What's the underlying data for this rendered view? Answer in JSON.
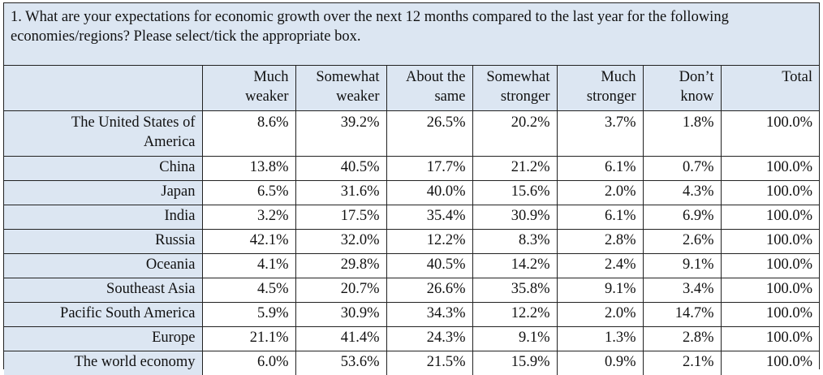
{
  "question": "1. What are your expectations for economic growth over the next 12 months compared to the last year for the following economies/regions? Please select/tick the appropriate box.",
  "columns": [
    {
      "line1": "Much",
      "line2": "weaker"
    },
    {
      "line1": "Somewhat",
      "line2": "weaker"
    },
    {
      "line1": "About the",
      "line2": "same"
    },
    {
      "line1": "Somewhat",
      "line2": "stronger"
    },
    {
      "line1": "Much",
      "line2": "stronger"
    },
    {
      "line1": "Don’t",
      "line2": "know"
    },
    {
      "line1": "Total",
      "line2": ""
    }
  ],
  "rows": [
    {
      "label": "The United States of America",
      "label_line1": "The United States of",
      "label_line2": "America",
      "values": [
        "8.6%",
        "39.2%",
        "26.5%",
        "20.2%",
        "3.7%",
        "1.8%",
        "100.0%"
      ]
    },
    {
      "label": "China",
      "values": [
        "13.8%",
        "40.5%",
        "17.7%",
        "21.2%",
        "6.1%",
        "0.7%",
        "100.0%"
      ]
    },
    {
      "label": "Japan",
      "values": [
        "6.5%",
        "31.6%",
        "40.0%",
        "15.6%",
        "2.0%",
        "4.3%",
        "100.0%"
      ]
    },
    {
      "label": "India",
      "values": [
        "3.2%",
        "17.5%",
        "35.4%",
        "30.9%",
        "6.1%",
        "6.9%",
        "100.0%"
      ]
    },
    {
      "label": "Russia",
      "values": [
        "42.1%",
        "32.0%",
        "12.2%",
        "8.3%",
        "2.8%",
        "2.6%",
        "100.0%"
      ]
    },
    {
      "label": "Oceania",
      "values": [
        "4.1%",
        "29.8%",
        "40.5%",
        "14.2%",
        "2.4%",
        "9.1%",
        "100.0%"
      ]
    },
    {
      "label": "Southeast Asia",
      "values": [
        "4.5%",
        "20.7%",
        "26.6%",
        "35.8%",
        "9.1%",
        "3.4%",
        "100.0%"
      ]
    },
    {
      "label": "Pacific South America",
      "values": [
        "5.9%",
        "30.9%",
        "34.3%",
        "12.2%",
        "2.0%",
        "14.7%",
        "100.0%"
      ]
    },
    {
      "label": "Europe",
      "values": [
        "21.1%",
        "41.4%",
        "24.3%",
        "9.1%",
        "1.3%",
        "2.8%",
        "100.0%"
      ]
    },
    {
      "label": "The world economy",
      "values": [
        "6.0%",
        "53.6%",
        "21.5%",
        "15.9%",
        "0.9%",
        "2.1%",
        "100.0%"
      ]
    }
  ]
}
